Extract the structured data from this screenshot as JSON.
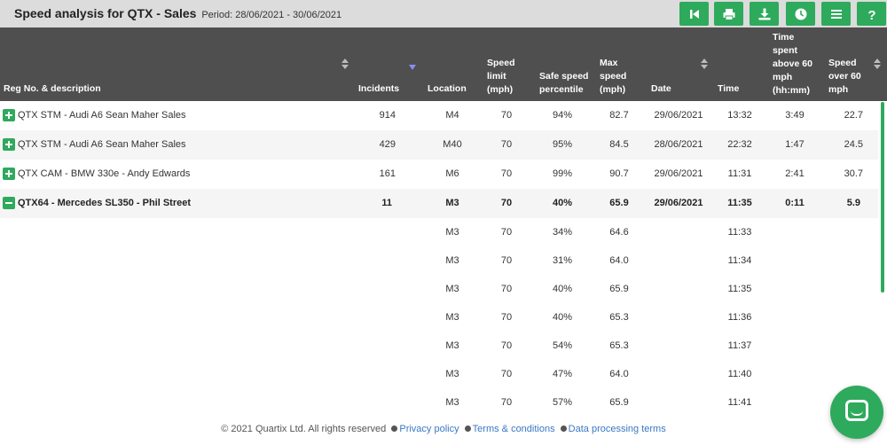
{
  "header": {
    "title": "Speed analysis for QTX - Sales",
    "period": "Period: 28/06/2021 - 30/06/2021",
    "toolbar_icons": [
      "first-page-icon",
      "print-icon",
      "download-icon",
      "clock-icon",
      "menu-icon",
      "help-icon"
    ],
    "accent_color": "#2eaa5c"
  },
  "table": {
    "columns": {
      "reg": "Reg No. & description",
      "incidents": "Incidents",
      "location": "Location",
      "speed_limit": [
        "Speed",
        "limit",
        "(mph)"
      ],
      "percentile": [
        "Safe speed",
        "percentile"
      ],
      "max_speed": [
        "Max",
        "speed",
        "(mph)"
      ],
      "date": "Date",
      "time": "Time",
      "time_above": [
        "Time",
        "spent",
        "above 60",
        "mph",
        "(hh:mm)"
      ],
      "speed_over": [
        "Speed",
        "over 60",
        "mph"
      ]
    },
    "rows": [
      {
        "reg": "QTX STM - Audi A6 Sean Maher Sales",
        "incidents": "914",
        "location": "M4",
        "limit": "70",
        "pct": "94%",
        "max": "82.7",
        "date": "29/06/2021",
        "time": "13:32",
        "above": "3:49",
        "over": "22.7",
        "expand": "plus"
      },
      {
        "reg": "QTX STM - Audi A6 Sean Maher Sales",
        "incidents": "429",
        "location": "M40",
        "limit": "70",
        "pct": "95%",
        "max": "84.5",
        "date": "28/06/2021",
        "time": "22:32",
        "above": "1:47",
        "over": "24.5",
        "expand": "plus"
      },
      {
        "reg": "QTX CAM - BMW 330e - Andy Edwards",
        "incidents": "161",
        "location": "M6",
        "limit": "70",
        "pct": "99%",
        "max": "90.7",
        "date": "29/06/2021",
        "time": "11:31",
        "above": "2:41",
        "over": "30.7",
        "expand": "plus"
      },
      {
        "reg": "QTX64 - Mercedes SL350 - Phil Street",
        "incidents": "11",
        "location": "M3",
        "limit": "70",
        "pct": "40%",
        "max": "65.9",
        "date": "29/06/2021",
        "time": "11:35",
        "above": "0:11",
        "over": "5.9",
        "expand": "minus"
      }
    ],
    "sub_rows": [
      {
        "location": "M3",
        "limit": "70",
        "pct": "34%",
        "max": "64.6",
        "time": "11:33"
      },
      {
        "location": "M3",
        "limit": "70",
        "pct": "31%",
        "max": "64.0",
        "time": "11:34"
      },
      {
        "location": "M3",
        "limit": "70",
        "pct": "40%",
        "max": "65.9",
        "time": "11:35"
      },
      {
        "location": "M3",
        "limit": "70",
        "pct": "40%",
        "max": "65.3",
        "time": "11:36"
      },
      {
        "location": "M3",
        "limit": "70",
        "pct": "54%",
        "max": "65.3",
        "time": "11:37"
      },
      {
        "location": "M3",
        "limit": "70",
        "pct": "47%",
        "max": "64.0",
        "time": "11:40"
      },
      {
        "location": "M3",
        "limit": "70",
        "pct": "57%",
        "max": "65.9",
        "time": "11:41"
      }
    ]
  },
  "footer": {
    "copyright": "© 2021 Quartix Ltd. All rights reserved",
    "privacy": "Privacy policy",
    "terms": "Terms & conditions",
    "data_terms": "Data processing terms"
  }
}
